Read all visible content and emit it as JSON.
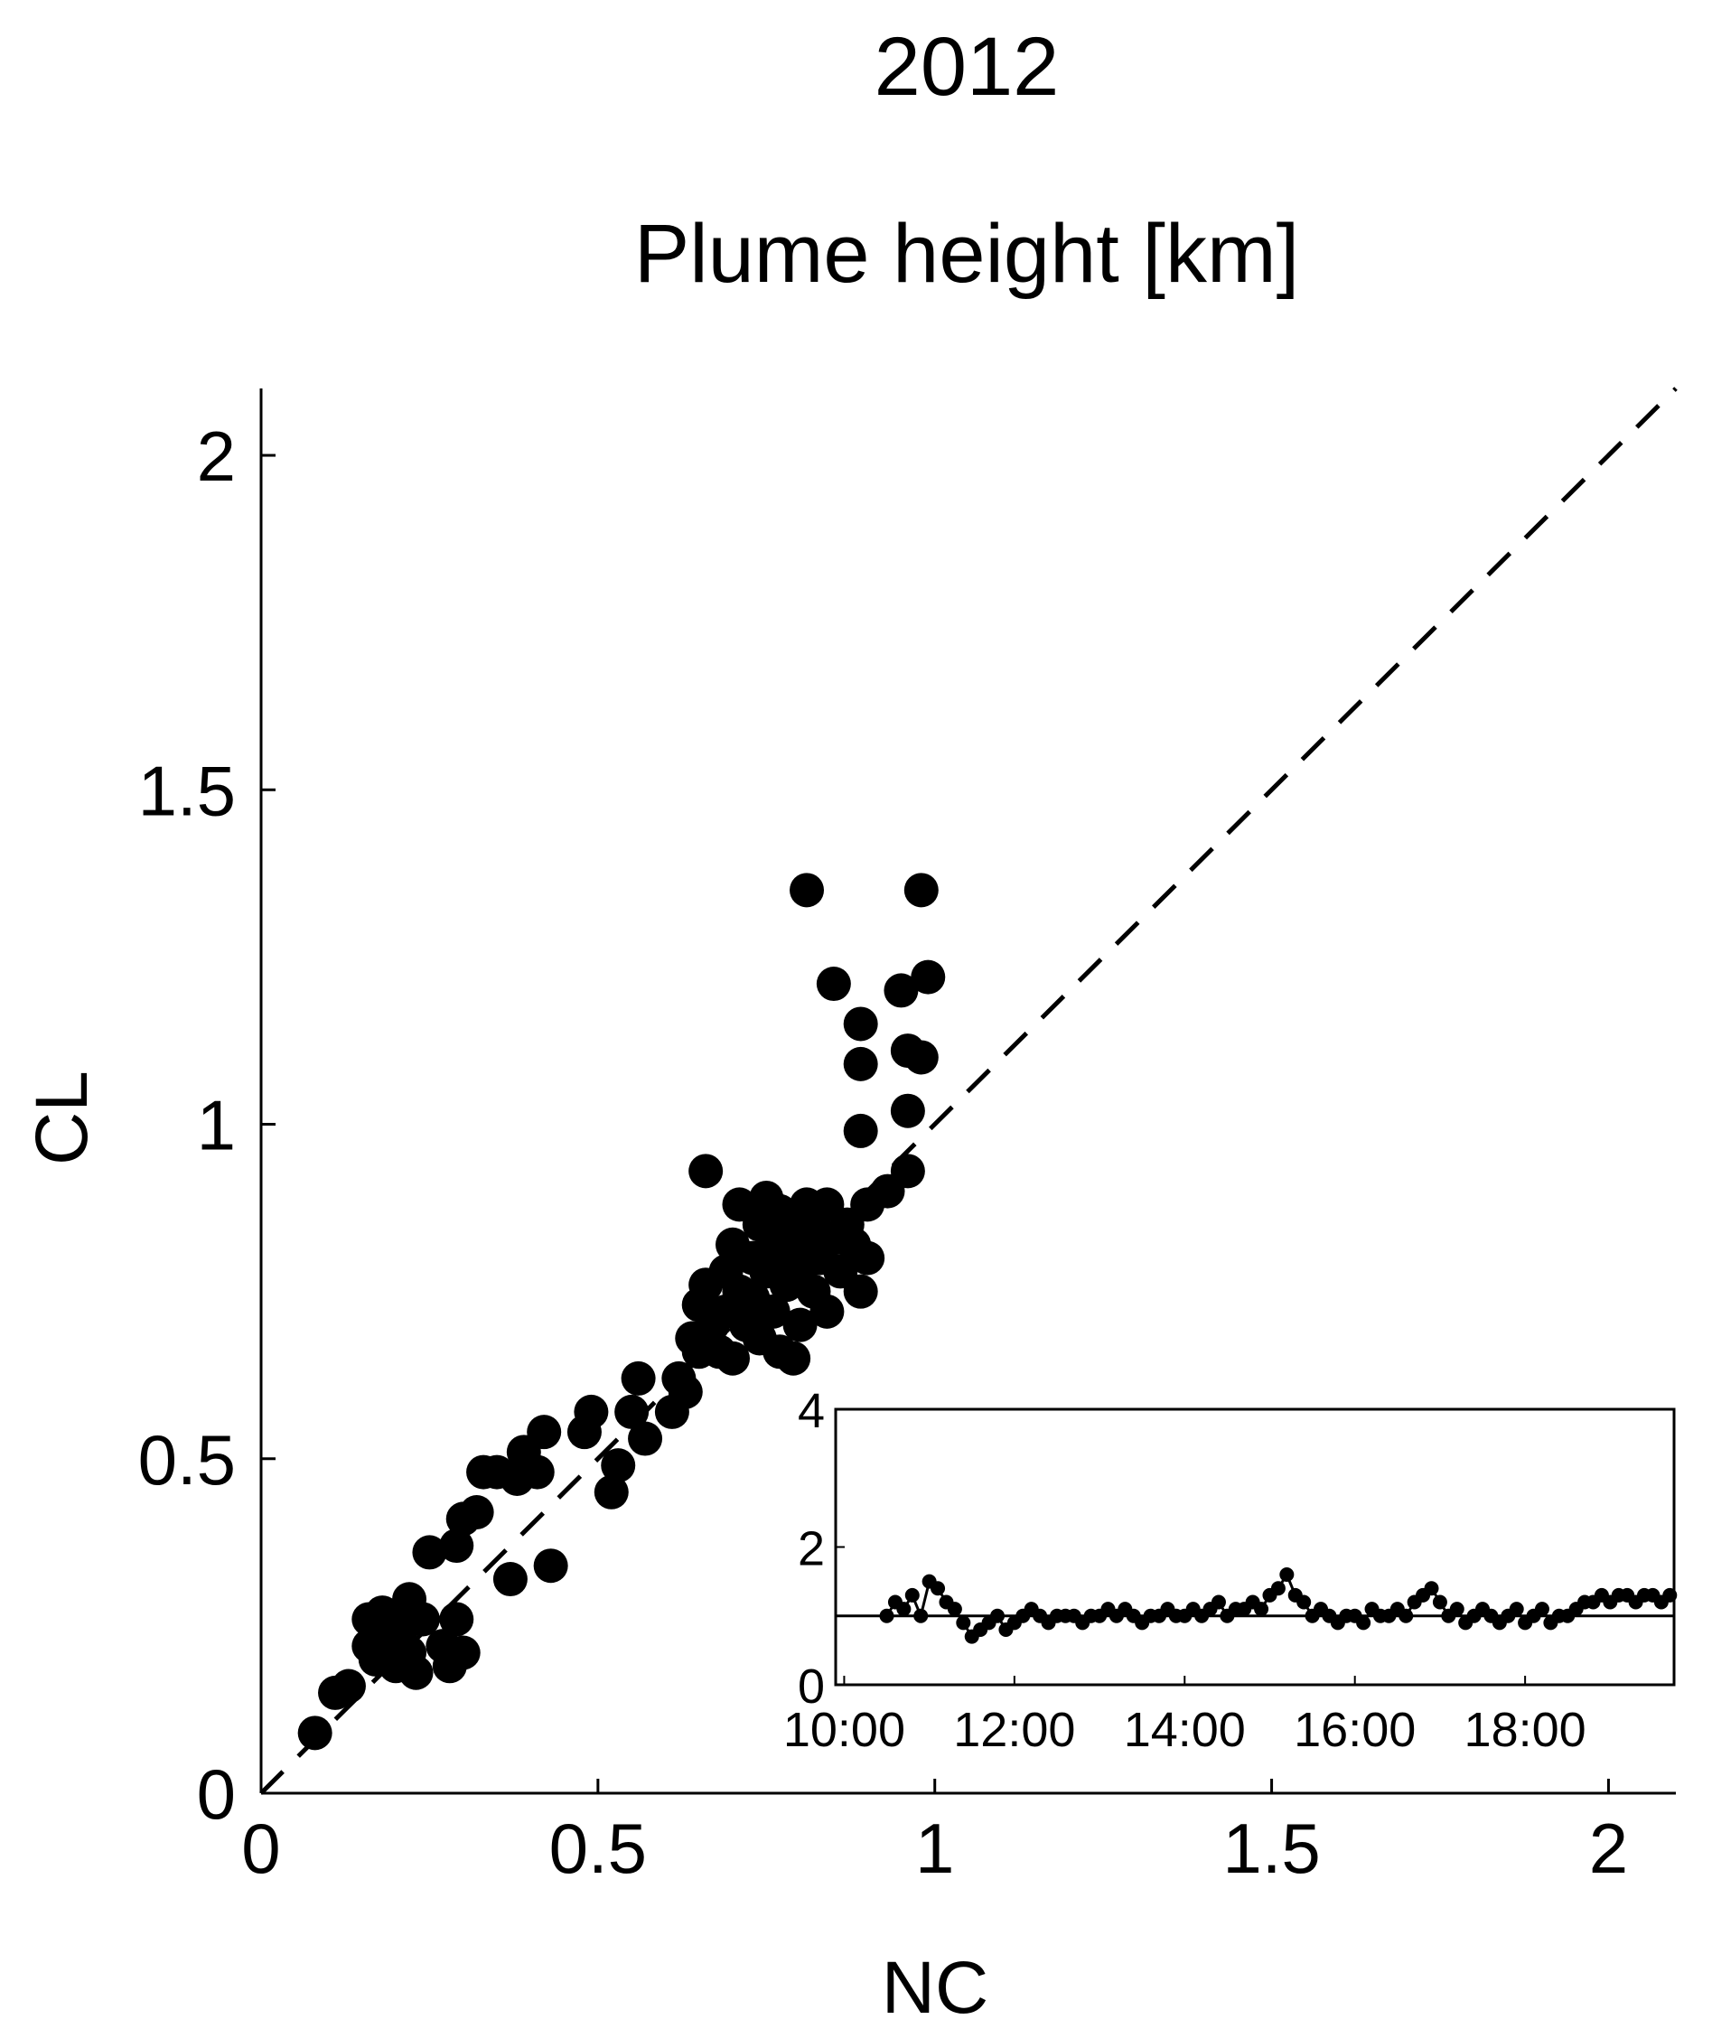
{
  "chart_data": [
    {
      "type": "scatter",
      "title": "2012",
      "subtitle": "Plume height [km]",
      "xlabel": "NC",
      "ylabel": "CL",
      "xlim": [
        0,
        2.1
      ],
      "ylim": [
        0,
        2.1
      ],
      "xticks": [
        0,
        0.5,
        1,
        1.5,
        2
      ],
      "xtick_labels": [
        "0",
        "0.5",
        "1",
        "1.5",
        "2"
      ],
      "yticks": [
        0,
        0.5,
        1,
        1.5,
        2
      ],
      "ytick_labels": [
        "0",
        "0.5",
        "1",
        "1.5",
        "2"
      ],
      "grid": false,
      "reference_line": {
        "style": "dashed",
        "x": [
          0,
          2.1
        ],
        "y": [
          0,
          2.1
        ]
      },
      "series": [
        {
          "marker": "filled-circle",
          "color": "#000000",
          "points": [
            [
              0.08,
              0.09
            ],
            [
              0.11,
              0.15
            ],
            [
              0.13,
              0.16
            ],
            [
              0.16,
              0.22
            ],
            [
              0.16,
              0.26
            ],
            [
              0.17,
              0.2
            ],
            [
              0.18,
              0.27
            ],
            [
              0.19,
              0.23
            ],
            [
              0.2,
              0.19
            ],
            [
              0.21,
              0.25
            ],
            [
              0.22,
              0.29
            ],
            [
              0.22,
              0.21
            ],
            [
              0.23,
              0.18
            ],
            [
              0.24,
              0.26
            ],
            [
              0.25,
              0.36
            ],
            [
              0.27,
              0.22
            ],
            [
              0.28,
              0.19
            ],
            [
              0.29,
              0.26
            ],
            [
              0.3,
              0.21
            ],
            [
              0.29,
              0.37
            ],
            [
              0.3,
              0.41
            ],
            [
              0.32,
              0.42
            ],
            [
              0.33,
              0.48
            ],
            [
              0.35,
              0.48
            ],
            [
              0.37,
              0.32
            ],
            [
              0.38,
              0.47
            ],
            [
              0.39,
              0.51
            ],
            [
              0.41,
              0.48
            ],
            [
              0.42,
              0.54
            ],
            [
              0.43,
              0.34
            ],
            [
              0.48,
              0.54
            ],
            [
              0.49,
              0.57
            ],
            [
              0.52,
              0.45
            ],
            [
              0.53,
              0.49
            ],
            [
              0.55,
              0.57
            ],
            [
              0.56,
              0.62
            ],
            [
              0.57,
              0.53
            ],
            [
              0.61,
              0.57
            ],
            [
              0.62,
              0.62
            ],
            [
              0.63,
              0.6
            ],
            [
              0.64,
              0.68
            ],
            [
              0.65,
              0.66
            ],
            [
              0.65,
              0.73
            ],
            [
              0.66,
              0.76
            ],
            [
              0.66,
              0.93
            ],
            [
              0.67,
              0.7
            ],
            [
              0.68,
              0.66
            ],
            [
              0.69,
              0.72
            ],
            [
              0.69,
              0.78
            ],
            [
              0.7,
              0.82
            ],
            [
              0.7,
              0.65
            ],
            [
              0.71,
              0.75
            ],
            [
              0.71,
              0.88
            ],
            [
              0.72,
              0.7
            ],
            [
              0.73,
              0.8
            ],
            [
              0.73,
              0.74
            ],
            [
              0.74,
              0.85
            ],
            [
              0.74,
              0.68
            ],
            [
              0.75,
              0.78
            ],
            [
              0.75,
              0.89
            ],
            [
              0.76,
              0.72
            ],
            [
              0.76,
              0.82
            ],
            [
              0.77,
              0.87
            ],
            [
              0.77,
              0.66
            ],
            [
              0.78,
              0.76
            ],
            [
              0.78,
              0.8
            ],
            [
              0.79,
              0.84
            ],
            [
              0.79,
              0.65
            ],
            [
              0.8,
              0.78
            ],
            [
              0.8,
              0.7
            ],
            [
              0.81,
              0.88
            ],
            [
              0.81,
              0.82
            ],
            [
              0.82,
              0.75
            ],
            [
              0.82,
              0.86
            ],
            [
              0.83,
              0.8
            ],
            [
              0.84,
              0.72
            ],
            [
              0.84,
              0.88
            ],
            [
              0.85,
              0.83
            ],
            [
              0.86,
              0.78
            ],
            [
              0.87,
              0.85
            ],
            [
              0.88,
              0.82
            ],
            [
              0.89,
              0.75
            ],
            [
              0.9,
              0.8
            ],
            [
              0.9,
              0.88
            ],
            [
              0.81,
              1.35
            ],
            [
              0.85,
              1.21
            ],
            [
              0.89,
              1.15
            ],
            [
              0.89,
              1.09
            ],
            [
              0.89,
              0.99
            ],
            [
              0.93,
              0.9
            ],
            [
              0.95,
              1.2
            ],
            [
              0.96,
              1.11
            ],
            [
              0.96,
              1.02
            ],
            [
              0.96,
              0.93
            ],
            [
              0.98,
              1.35
            ],
            [
              0.99,
              1.22
            ],
            [
              0.98,
              1.1
            ]
          ]
        }
      ]
    },
    {
      "type": "line",
      "role": "inset",
      "ylim": [
        0,
        4
      ],
      "yticks": [
        0,
        2,
        4
      ],
      "ytick_labels": [
        "0",
        "2",
        "4"
      ],
      "x_range_hours": [
        9.9,
        19.75
      ],
      "xticks": [
        10,
        12,
        14,
        16,
        18
      ],
      "xtick_labels": [
        "10:00",
        "12:00",
        "14:00",
        "16:00",
        "18:00"
      ],
      "reference_line": {
        "style": "solid",
        "y": 1
      },
      "series": [
        {
          "marker": "dot",
          "color": "#000000",
          "x_hours": [
            10.5,
            10.6,
            10.7,
            10.8,
            10.9,
            11.0,
            11.1,
            11.2,
            11.3,
            11.4,
            11.5,
            11.6,
            11.7,
            11.8,
            11.9,
            12.0,
            12.1,
            12.2,
            12.3,
            12.4,
            12.5,
            12.6,
            12.7,
            12.8,
            12.9,
            13.0,
            13.1,
            13.2,
            13.3,
            13.4,
            13.5,
            13.6,
            13.7,
            13.8,
            13.9,
            14.0,
            14.1,
            14.2,
            14.3,
            14.4,
            14.5,
            14.6,
            14.7,
            14.8,
            14.9,
            15.0,
            15.1,
            15.2,
            15.3,
            15.4,
            15.5,
            15.6,
            15.7,
            15.8,
            15.9,
            16.0,
            16.1,
            16.2,
            16.3,
            16.4,
            16.5,
            16.6,
            16.7,
            16.8,
            16.9,
            17.0,
            17.1,
            17.2,
            17.3,
            17.4,
            17.5,
            17.6,
            17.7,
            17.8,
            17.9,
            18.0,
            18.1,
            18.2,
            18.3,
            18.4,
            18.5,
            18.6,
            18.7,
            18.8,
            18.9,
            19.0,
            19.1,
            19.2,
            19.3,
            19.4,
            19.5,
            19.6,
            19.7
          ],
          "y": [
            1.0,
            1.2,
            1.1,
            1.3,
            1.0,
            1.5,
            1.4,
            1.2,
            1.1,
            0.9,
            0.7,
            0.8,
            0.9,
            1.0,
            0.8,
            0.9,
            1.0,
            1.1,
            1.0,
            0.9,
            1.0,
            1.0,
            1.0,
            0.9,
            1.0,
            1.0,
            1.1,
            1.0,
            1.1,
            1.0,
            0.9,
            1.0,
            1.0,
            1.1,
            1.0,
            1.0,
            1.1,
            1.0,
            1.1,
            1.2,
            1.0,
            1.1,
            1.1,
            1.2,
            1.1,
            1.3,
            1.4,
            1.6,
            1.3,
            1.2,
            1.0,
            1.1,
            1.0,
            0.9,
            1.0,
            1.0,
            0.9,
            1.1,
            1.0,
            1.0,
            1.1,
            1.0,
            1.2,
            1.3,
            1.4,
            1.2,
            1.0,
            1.1,
            0.9,
            1.0,
            1.1,
            1.0,
            0.9,
            1.0,
            1.1,
            0.9,
            1.0,
            1.1,
            0.9,
            1.0,
            1.0,
            1.1,
            1.2,
            1.2,
            1.3,
            1.2,
            1.3,
            1.3,
            1.2,
            1.3,
            1.3,
            1.2,
            1.3
          ]
        }
      ]
    }
  ]
}
